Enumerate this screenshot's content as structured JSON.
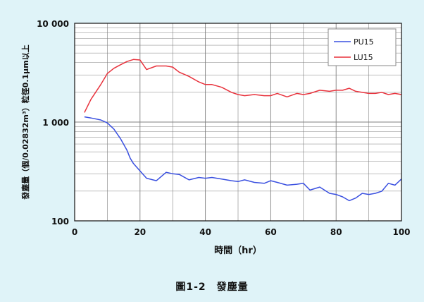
{
  "caption": "圖1-2　發塵量",
  "colors": {
    "background": "#dff3f8",
    "plot_bg": "#ffffff",
    "grid": "#808080",
    "pu15": "#3a50e0",
    "lu15": "#e8323c"
  },
  "chart_data": {
    "type": "line",
    "title": "",
    "xlabel": "時間（hr）",
    "ylabel": "發塵量（個/0.02832m³）粒徑0.1μm以上",
    "xlim": [
      0,
      100
    ],
    "ylim": [
      100,
      10000
    ],
    "yscale": "log",
    "x_ticks": [
      0,
      20,
      40,
      60,
      80,
      100
    ],
    "x_tick_labels": [
      "0",
      "20",
      "40",
      "60",
      "80",
      "100"
    ],
    "y_ticks": [
      100,
      1000,
      10000
    ],
    "y_tick_labels": [
      "100",
      "1 000",
      "10 000"
    ],
    "grid": true,
    "legend_position": "top-right",
    "series": [
      {
        "name": "PU15",
        "color": "#3a50e0",
        "x": [
          3,
          5,
          8,
          10,
          12,
          14,
          16,
          17,
          18,
          20,
          22,
          25,
          28,
          30,
          32,
          35,
          38,
          40,
          42,
          45,
          48,
          50,
          52,
          55,
          58,
          60,
          62,
          65,
          68,
          70,
          72,
          75,
          78,
          80,
          82,
          84,
          86,
          88,
          90,
          92,
          94,
          96,
          98,
          100
        ],
        "values": [
          1130,
          1100,
          1050,
          980,
          850,
          680,
          520,
          430,
          380,
          320,
          270,
          255,
          310,
          300,
          295,
          260,
          275,
          270,
          275,
          265,
          255,
          250,
          260,
          245,
          240,
          255,
          245,
          230,
          235,
          240,
          205,
          220,
          190,
          185,
          175,
          160,
          170,
          190,
          185,
          190,
          200,
          240,
          230,
          265
        ]
      },
      {
        "name": "LU15",
        "color": "#e8323c",
        "x": [
          3,
          5,
          8,
          10,
          12,
          14,
          16,
          18,
          20,
          22,
          25,
          28,
          30,
          32,
          35,
          38,
          40,
          42,
          45,
          48,
          50,
          52,
          55,
          58,
          60,
          62,
          65,
          68,
          70,
          72,
          75,
          78,
          80,
          82,
          84,
          86,
          88,
          90,
          92,
          94,
          96,
          98,
          100
        ],
        "values": [
          1250,
          1700,
          2400,
          3100,
          3500,
          3800,
          4100,
          4300,
          4250,
          3400,
          3700,
          3700,
          3600,
          3200,
          2900,
          2550,
          2400,
          2400,
          2250,
          2000,
          1900,
          1850,
          1900,
          1850,
          1850,
          1950,
          1800,
          1950,
          1900,
          1950,
          2100,
          2050,
          2100,
          2100,
          2200,
          2050,
          2000,
          1950,
          1950,
          2000,
          1900,
          1950,
          1900
        ]
      }
    ]
  }
}
